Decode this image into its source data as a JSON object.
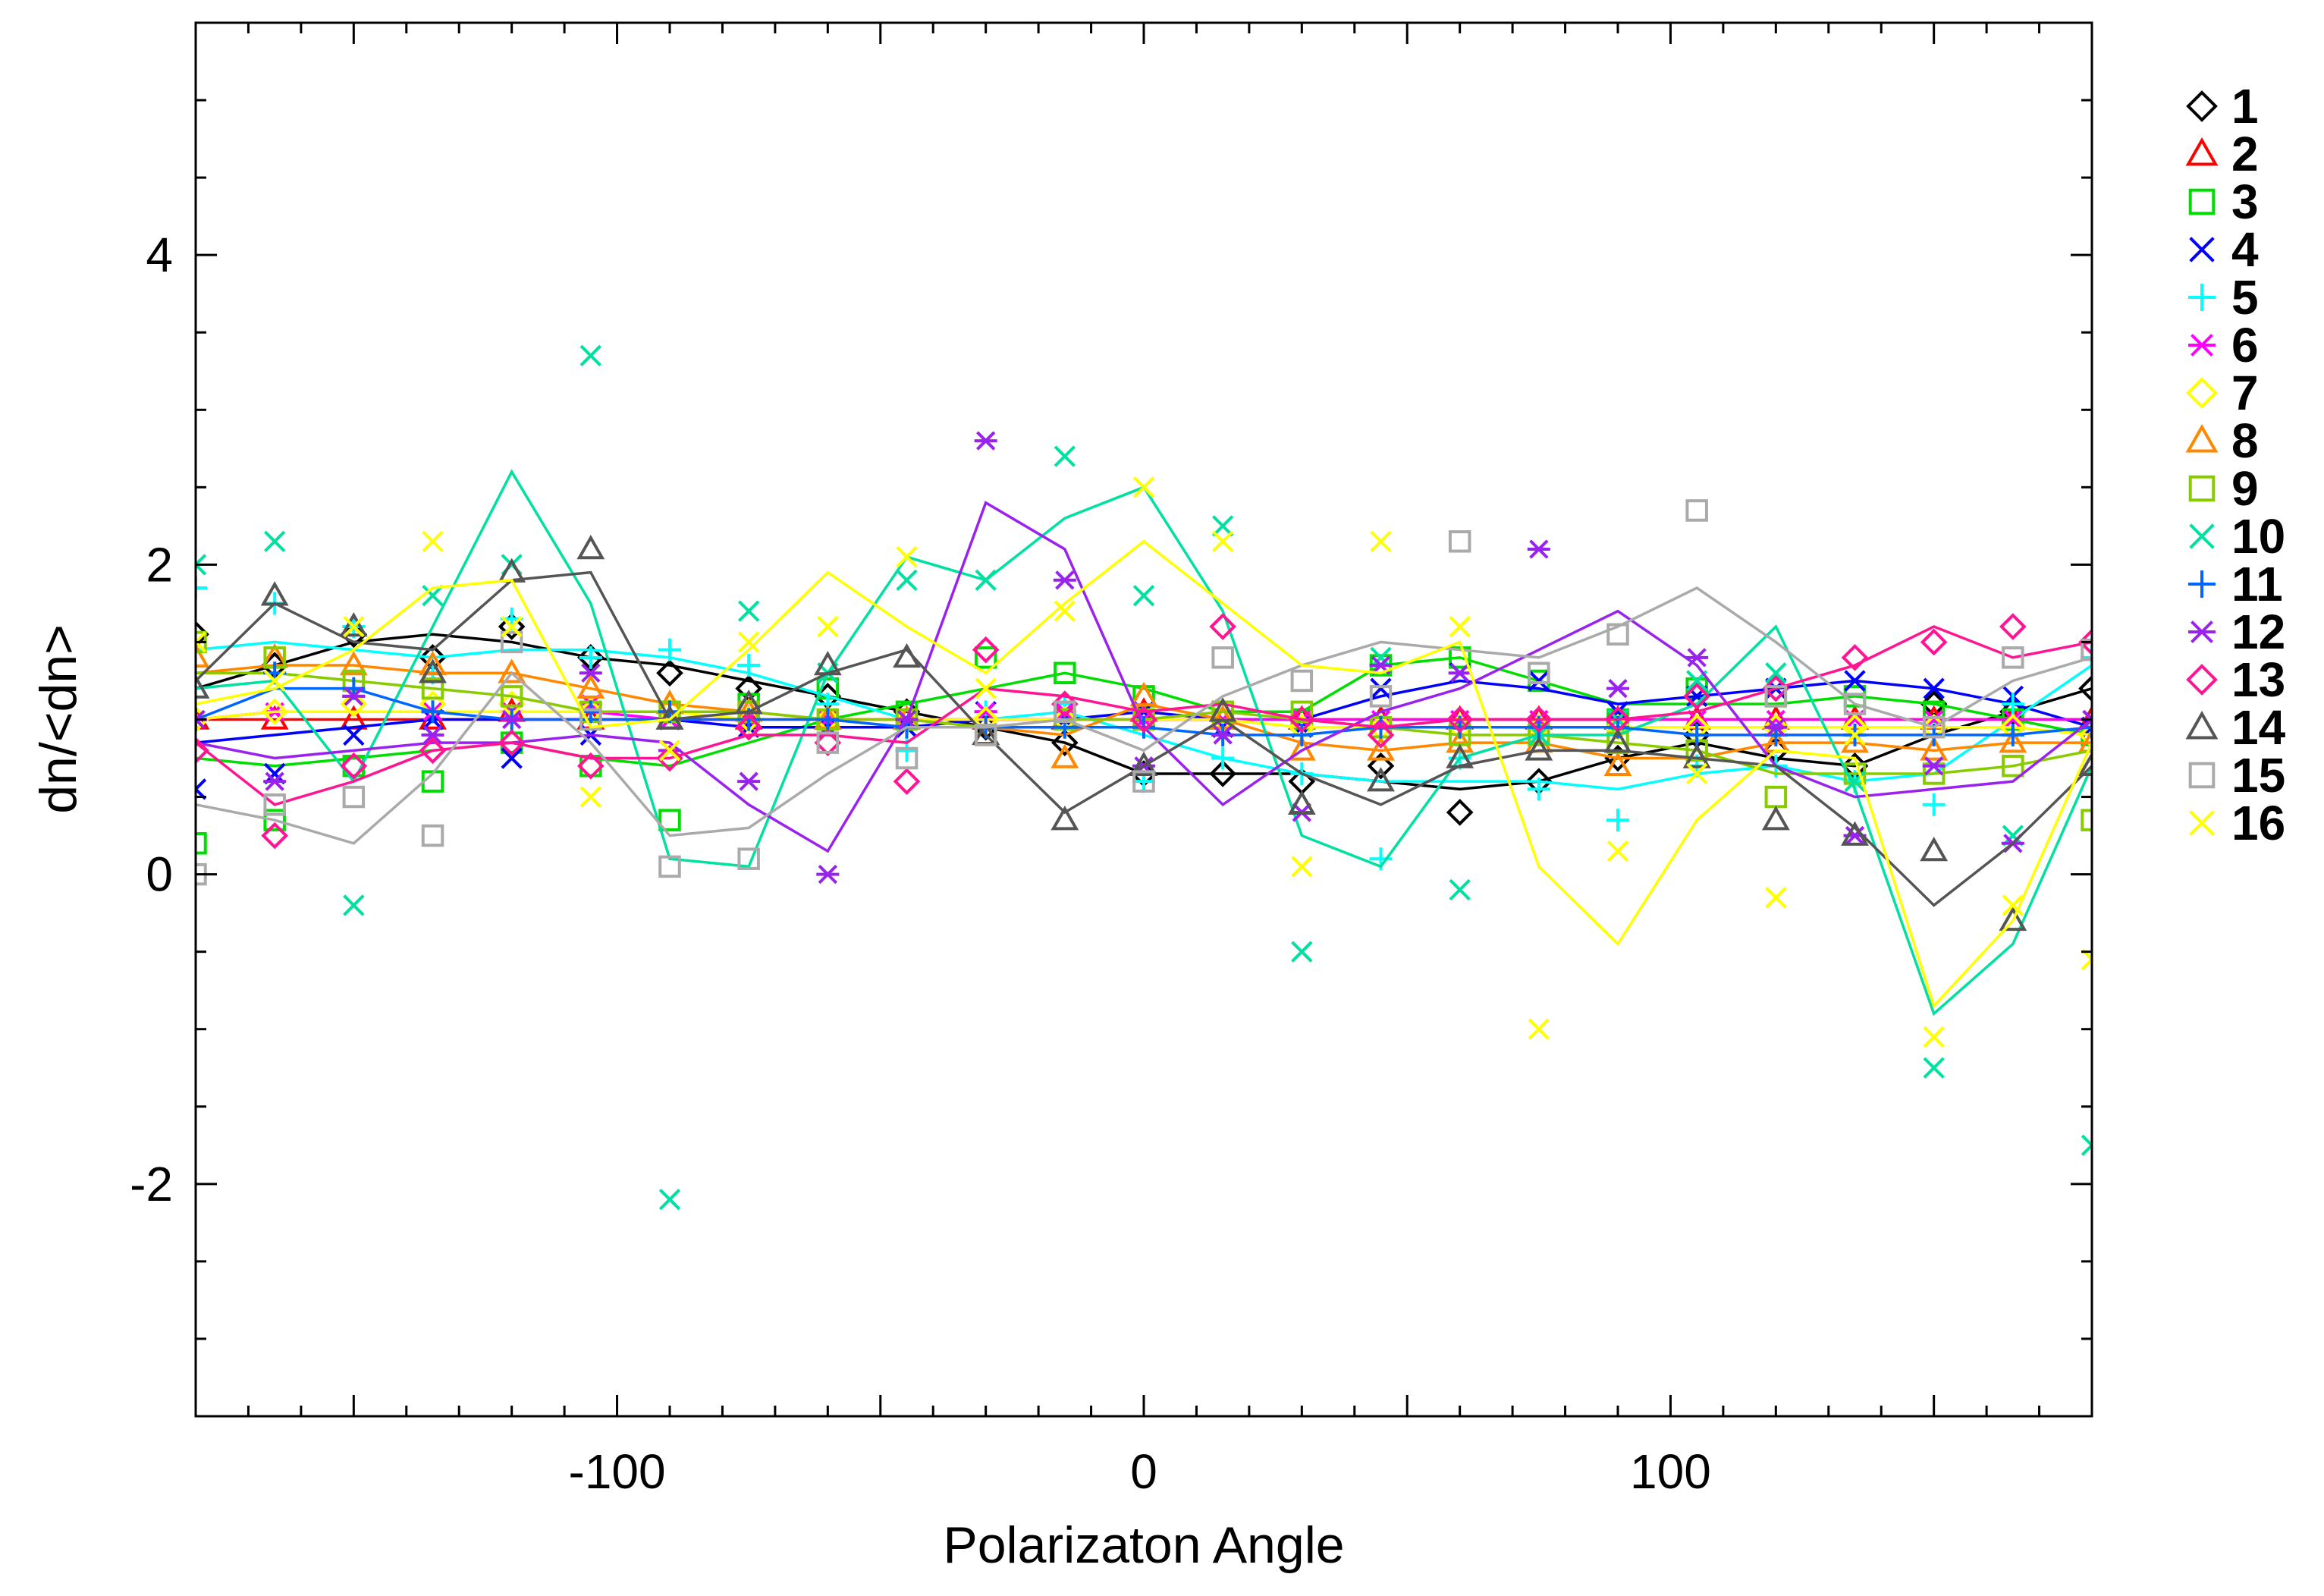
{
  "chart_data": {
    "type": "scatter",
    "title": "",
    "xlabel": "Polarizaton Angle",
    "ylabel": "dn/<dn>",
    "xlim": [
      -180,
      180
    ],
    "ylim": [
      -3.5,
      5.5
    ],
    "xticks": [
      -100,
      0,
      100
    ],
    "xtick_labels": [
      "-100",
      "0",
      "100"
    ],
    "yticks": [
      -2,
      0,
      2,
      4
    ],
    "ytick_labels": [
      "-2",
      "0",
      "2",
      "4"
    ],
    "legend_position": "right",
    "x": [
      -180,
      -165,
      -150,
      -135,
      -120,
      -105,
      -90,
      -75,
      -60,
      -45,
      -30,
      -15,
      0,
      15,
      30,
      45,
      60,
      75,
      90,
      105,
      120,
      135,
      150,
      165,
      180
    ],
    "series": [
      {
        "name": "1",
        "color": "#000000",
        "marker": "diamond",
        "points": [
          1.55,
          1.35,
          1.55,
          1.4,
          1.6,
          1.4,
          1.3,
          1.2,
          1.15,
          1.05,
          0.95,
          0.85,
          0.65,
          0.65,
          0.6,
          0.7,
          0.4,
          0.6,
          0.75,
          0.9,
          0.8,
          0.7,
          1.1,
          1.05,
          1.2
        ],
        "line": [
          1.2,
          1.35,
          1.5,
          1.55,
          1.5,
          1.4,
          1.35,
          1.25,
          1.15,
          1.05,
          0.95,
          0.85,
          0.65,
          0.65,
          0.65,
          0.6,
          0.55,
          0.6,
          0.75,
          0.85,
          0.75,
          0.7,
          0.9,
          1.05,
          1.2
        ]
      },
      {
        "name": "2",
        "color": "#ff0000",
        "marker": "triangle",
        "points": [
          1.0,
          1.0,
          1.0,
          1.0,
          1.05,
          1.0,
          1.0,
          1.0,
          1.0,
          1.0,
          1.0,
          1.0,
          1.05,
          1.0,
          1.0,
          1.0,
          1.0,
          1.0,
          1.0,
          1.0,
          1.0,
          1.0,
          1.0,
          1.0,
          1.0
        ],
        "line": [
          1.0,
          1.0,
          1.0,
          1.0,
          1.0,
          1.0,
          1.0,
          1.0,
          1.0,
          1.0,
          1.0,
          1.0,
          1.0,
          1.0,
          1.0,
          1.0,
          1.0,
          1.0,
          1.0,
          1.0,
          1.0,
          1.0,
          1.0,
          1.0,
          1.0
        ]
      },
      {
        "name": "3",
        "color": "#00dd00",
        "marker": "square",
        "points": [
          0.2,
          0.35,
          0.7,
          0.6,
          0.85,
          0.7,
          0.35,
          1.1,
          1.2,
          1.05,
          1.4,
          1.3,
          1.15,
          1.05,
          1.0,
          1.35,
          1.4,
          1.25,
          1.0,
          1.2,
          1.15,
          1.15,
          1.05,
          1.0,
          0.9
        ],
        "line": [
          0.75,
          0.7,
          0.75,
          0.8,
          0.85,
          0.75,
          0.7,
          0.85,
          1.0,
          1.1,
          1.2,
          1.3,
          1.2,
          1.05,
          1.05,
          1.35,
          1.4,
          1.25,
          1.1,
          1.1,
          1.1,
          1.15,
          1.1,
          1.0,
          0.9
        ]
      },
      {
        "name": "4",
        "color": "#0000ff",
        "marker": "x",
        "points": [
          0.55,
          0.65,
          0.9,
          1.0,
          0.75,
          0.9,
          1.0,
          0.95,
          0.95,
          0.95,
          1.05,
          1.0,
          1.05,
          0.95,
          0.95,
          1.2,
          1.3,
          1.25,
          1.05,
          1.15,
          1.2,
          1.25,
          1.2,
          1.15,
          0.95
        ],
        "line": [
          0.85,
          0.9,
          0.95,
          1.0,
          1.0,
          1.0,
          1.0,
          0.95,
          0.95,
          0.95,
          1.0,
          1.0,
          1.05,
          1.0,
          1.0,
          1.15,
          1.25,
          1.2,
          1.1,
          1.15,
          1.2,
          1.25,
          1.2,
          1.1,
          0.95
        ]
      },
      {
        "name": "5",
        "color": "#00ffff",
        "marker": "plus",
        "points": [
          1.85,
          1.75,
          1.6,
          1.3,
          1.65,
          1.4,
          1.45,
          1.35,
          1.1,
          0.8,
          1.05,
          1.1,
          0.6,
          0.75,
          0.65,
          0.1,
          0.75,
          0.55,
          0.35,
          0.7,
          0.7,
          0.6,
          0.45,
          1.1,
          1.4
        ],
        "line": [
          1.45,
          1.5,
          1.45,
          1.4,
          1.45,
          1.45,
          1.4,
          1.3,
          1.15,
          1.0,
          1.0,
          1.05,
          0.9,
          0.75,
          0.65,
          0.6,
          0.6,
          0.6,
          0.55,
          0.65,
          0.7,
          0.6,
          0.65,
          1.0,
          1.35
        ]
      },
      {
        "name": "6",
        "color": "#ff00ff",
        "marker": "asterisk",
        "points": [
          1.0,
          1.05,
          1.15,
          1.05,
          1.05,
          1.1,
          1.0,
          1.0,
          1.0,
          1.0,
          1.05,
          1.05,
          1.0,
          1.0,
          1.0,
          1.0,
          1.0,
          1.0,
          1.0,
          1.0,
          1.0,
          1.0,
          1.0,
          1.0,
          1.0
        ],
        "line": [
          1.0,
          1.05,
          1.05,
          1.05,
          1.05,
          1.05,
          1.0,
          1.0,
          1.0,
          1.0,
          1.0,
          1.0,
          1.0,
          1.0,
          1.0,
          1.0,
          1.0,
          1.0,
          1.0,
          1.0,
          1.0,
          1.0,
          1.0,
          1.0,
          1.0
        ]
      },
      {
        "name": "7",
        "color": "#ffff00",
        "marker": "diamond",
        "points": [
          1.0,
          1.05,
          1.1,
          1.1,
          1.1,
          1.05,
          1.05,
          1.0,
          1.0,
          1.0,
          1.0,
          1.0,
          1.0,
          1.0,
          0.95,
          0.95,
          0.95,
          0.95,
          0.95,
          0.95,
          0.95,
          0.95,
          0.95,
          0.95,
          0.9
        ],
        "line": [
          1.0,
          1.05,
          1.05,
          1.05,
          1.05,
          1.05,
          1.05,
          1.0,
          1.0,
          1.0,
          1.0,
          1.0,
          1.0,
          1.0,
          0.95,
          0.95,
          0.95,
          0.95,
          0.95,
          0.95,
          0.95,
          0.95,
          0.95,
          0.95,
          0.9
        ]
      },
      {
        "name": "8",
        "color": "#ff8800",
        "marker": "triangle",
        "points": [
          1.4,
          1.4,
          1.35,
          1.35,
          1.3,
          1.2,
          1.1,
          1.05,
          1.0,
          1.0,
          0.9,
          0.75,
          1.15,
          1.0,
          0.8,
          0.8,
          0.85,
          0.85,
          0.7,
          0.75,
          0.85,
          0.85,
          0.8,
          0.85,
          0.85
        ],
        "line": [
          1.3,
          1.35,
          1.35,
          1.3,
          1.3,
          1.2,
          1.1,
          1.05,
          1.0,
          1.0,
          0.95,
          0.9,
          1.1,
          1.0,
          0.85,
          0.8,
          0.85,
          0.85,
          0.75,
          0.75,
          0.85,
          0.85,
          0.8,
          0.85,
          0.85
        ]
      },
      {
        "name": "9",
        "color": "#88cc00",
        "marker": "square",
        "points": [
          1.5,
          1.4,
          1.25,
          1.2,
          1.15,
          1.05,
          1.05,
          1.05,
          1.0,
          1.0,
          0.9,
          1.0,
          1.0,
          1.05,
          1.05,
          0.95,
          0.9,
          0.9,
          0.85,
          0.8,
          0.5,
          0.65,
          0.65,
          0.7,
          0.35
        ],
        "line": [
          1.3,
          1.3,
          1.25,
          1.2,
          1.15,
          1.05,
          1.05,
          1.05,
          1.0,
          1.0,
          0.95,
          1.0,
          1.0,
          1.05,
          1.0,
          0.95,
          0.9,
          0.9,
          0.85,
          0.8,
          0.65,
          0.65,
          0.65,
          0.7,
          0.8
        ]
      },
      {
        "name": "10",
        "color": "#00e0a0",
        "marker": "x",
        "points": [
          2.0,
          2.15,
          -0.2,
          1.8,
          2.0,
          3.35,
          -2.1,
          1.7,
          1.3,
          1.9,
          1.9,
          2.7,
          1.8,
          2.25,
          -0.5,
          1.4,
          -0.1,
          0.9,
          1.0,
          1.25,
          1.3,
          0.6,
          -1.25,
          0.25,
          -1.75
        ],
        "line": [
          1.2,
          1.25,
          0.6,
          1.6,
          2.6,
          1.75,
          0.1,
          0.05,
          1.3,
          2.05,
          1.9,
          2.3,
          2.5,
          1.7,
          0.25,
          0.05,
          0.75,
          0.9,
          0.9,
          1.1,
          1.6,
          0.55,
          -0.9,
          -0.45,
          0.7
        ]
      },
      {
        "name": "11",
        "color": "#0066ff",
        "marker": "plus",
        "points": [
          1.0,
          1.3,
          1.2,
          1.05,
          1.0,
          1.05,
          1.05,
          1.0,
          1.0,
          0.95,
          0.95,
          0.95,
          0.95,
          0.9,
          0.9,
          0.95,
          0.95,
          0.95,
          0.95,
          0.9,
          0.9,
          0.9,
          0.9,
          0.9,
          0.95
        ],
        "line": [
          1.0,
          1.2,
          1.2,
          1.05,
          1.0,
          1.0,
          1.0,
          1.0,
          1.0,
          0.95,
          0.95,
          0.95,
          0.95,
          0.9,
          0.9,
          0.95,
          0.95,
          0.95,
          0.95,
          0.9,
          0.9,
          0.9,
          0.9,
          0.9,
          0.95
        ]
      },
      {
        "name": "12",
        "color": "#9922ee",
        "marker": "asterisk",
        "points": [
          1.0,
          0.6,
          1.15,
          0.9,
          1.0,
          1.3,
          0.8,
          0.6,
          0.0,
          1.0,
          2.8,
          1.9,
          0.7,
          0.9,
          0.4,
          1.35,
          1.3,
          2.1,
          1.2,
          1.4,
          0.95,
          0.25,
          0.7,
          0.2,
          1.0
        ],
        "line": [
          0.85,
          0.75,
          0.8,
          0.85,
          0.85,
          0.9,
          0.85,
          0.45,
          0.15,
          1.0,
          2.4,
          2.1,
          0.95,
          0.45,
          0.8,
          1.05,
          1.2,
          1.45,
          1.7,
          1.35,
          0.7,
          0.5,
          0.55,
          0.6,
          1.0
        ]
      },
      {
        "name": "13",
        "color": "#ff1493",
        "marker": "diamond",
        "points": [
          0.8,
          0.25,
          0.7,
          0.8,
          0.85,
          0.7,
          0.75,
          0.95,
          0.85,
          0.6,
          1.45,
          1.1,
          1.0,
          1.6,
          1.0,
          0.9,
          1.0,
          1.0,
          1.0,
          1.15,
          1.2,
          1.4,
          1.5,
          1.6,
          1.5
        ],
        "line": [
          0.85,
          0.45,
          0.6,
          0.8,
          0.85,
          0.75,
          0.75,
          0.9,
          0.9,
          0.85,
          1.2,
          1.15,
          1.05,
          1.1,
          1.0,
          0.95,
          1.0,
          1.0,
          1.0,
          1.05,
          1.2,
          1.35,
          1.6,
          1.4,
          1.5
        ]
      },
      {
        "name": "14",
        "color": "#555555",
        "marker": "triangle",
        "points": [
          1.2,
          1.8,
          1.6,
          1.3,
          1.95,
          2.1,
          1.0,
          1.1,
          1.35,
          1.4,
          0.9,
          0.35,
          0.7,
          1.05,
          0.45,
          0.6,
          0.75,
          0.8,
          0.85,
          0.75,
          0.35,
          0.25,
          0.15,
          -0.3,
          0.7
        ],
        "line": [
          1.25,
          1.75,
          1.5,
          1.45,
          1.9,
          1.95,
          1.0,
          1.05,
          1.3,
          1.45,
          0.9,
          0.4,
          0.7,
          1.0,
          0.65,
          0.45,
          0.7,
          0.8,
          0.8,
          0.75,
          0.7,
          0.3,
          -0.2,
          0.2,
          0.7
        ]
      },
      {
        "name": "15",
        "color": "#aaaaaa",
        "marker": "square",
        "points": [
          0.0,
          0.45,
          0.5,
          0.25,
          1.5,
          1.0,
          0.05,
          0.1,
          0.85,
          0.75,
          0.9,
          1.05,
          0.6,
          1.4,
          1.25,
          1.15,
          2.15,
          1.3,
          1.55,
          2.35,
          1.15,
          1.1,
          0.95,
          1.4,
          1.45
        ],
        "line": [
          0.45,
          0.35,
          0.2,
          0.65,
          1.3,
          0.85,
          0.25,
          0.3,
          0.65,
          0.95,
          0.95,
          1.0,
          0.8,
          1.15,
          1.35,
          1.5,
          1.45,
          1.4,
          1.6,
          1.85,
          1.5,
          1.1,
          0.95,
          1.25,
          1.4
        ]
      },
      {
        "name": "16",
        "color": "#ffff00",
        "marker": "x",
        "points": [
          1.5,
          1.25,
          1.6,
          2.15,
          1.6,
          0.5,
          0.8,
          1.5,
          1.6,
          2.05,
          1.2,
          1.7,
          2.5,
          2.15,
          0.05,
          2.15,
          1.6,
          -1.0,
          0.15,
          0.65,
          -0.15,
          0.9,
          -1.05,
          -0.2,
          -0.55
        ],
        "line": [
          1.1,
          1.2,
          1.45,
          1.85,
          1.9,
          0.95,
          1.0,
          1.45,
          1.95,
          1.6,
          1.3,
          1.75,
          2.15,
          1.75,
          1.35,
          1.3,
          1.5,
          0.05,
          -0.45,
          0.35,
          0.8,
          0.75,
          -0.85,
          -0.3,
          0.85
        ]
      }
    ]
  }
}
